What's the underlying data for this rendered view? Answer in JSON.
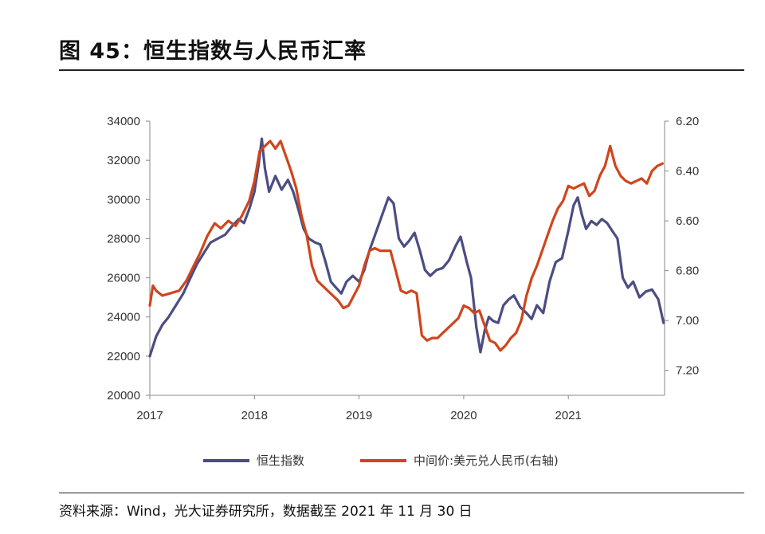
{
  "header": {
    "title": "图 45：恒生指数与人民币汇率"
  },
  "footer": {
    "source": "资料来源：Wind，光大证券研究所，数据截至 2021 年 11 月 30 日"
  },
  "colors": {
    "hsi": "#4b4d82",
    "fx": "#d0451c",
    "axis": "#888888"
  },
  "chart_data": {
    "type": "line",
    "x_ticks": [
      "2017",
      "2018",
      "2019",
      "2020",
      "2021"
    ],
    "y_left": {
      "ylim": [
        20000,
        34000
      ],
      "ticks": [
        "34000",
        "32000",
        "30000",
        "28000",
        "26000",
        "24000",
        "22000",
        "20000"
      ]
    },
    "y_right": {
      "ylim": [
        6.2,
        7.3
      ],
      "inverted": true,
      "ticks": [
        "6.20",
        "6.40",
        "6.60",
        "6.80",
        "7.00",
        "7.20"
      ]
    },
    "series": [
      {
        "name": "恒生指数",
        "axis": "left",
        "x": [
          2017.0,
          2017.06,
          2017.12,
          2017.18,
          2017.25,
          2017.32,
          2017.38,
          2017.45,
          2017.52,
          2017.58,
          2017.65,
          2017.72,
          2017.78,
          2017.85,
          2017.9,
          2017.95,
          2018.0,
          2018.04,
          2018.07,
          2018.1,
          2018.14,
          2018.2,
          2018.26,
          2018.32,
          2018.37,
          2018.42,
          2018.47,
          2018.52,
          2018.58,
          2018.63,
          2018.68,
          2018.73,
          2018.78,
          2018.83,
          2018.88,
          2018.94,
          2019.0,
          2019.05,
          2019.1,
          2019.16,
          2019.22,
          2019.28,
          2019.33,
          2019.38,
          2019.43,
          2019.48,
          2019.53,
          2019.58,
          2019.63,
          2019.68,
          2019.74,
          2019.8,
          2019.86,
          2019.92,
          2019.97,
          2020.03,
          2020.07,
          2020.12,
          2020.16,
          2020.2,
          2020.24,
          2020.28,
          2020.33,
          2020.38,
          2020.43,
          2020.48,
          2020.54,
          2020.6,
          2020.65,
          2020.7,
          2020.76,
          2020.82,
          2020.88,
          2020.94,
          2021.0,
          2021.05,
          2021.09,
          2021.13,
          2021.17,
          2021.22,
          2021.27,
          2021.32,
          2021.37,
          2021.42,
          2021.47,
          2021.52,
          2021.57,
          2021.62,
          2021.68,
          2021.74,
          2021.8,
          2021.86,
          2021.91
        ],
        "values": [
          22000,
          23000,
          23600,
          24000,
          24600,
          25200,
          25900,
          26700,
          27300,
          27800,
          28000,
          28200,
          28600,
          29000,
          28800,
          29500,
          30400,
          31800,
          33100,
          31600,
          30400,
          31200,
          30500,
          31000,
          30400,
          29500,
          28500,
          28000,
          27800,
          27700,
          26800,
          25800,
          25500,
          25200,
          25800,
          26100,
          25800,
          26400,
          27400,
          28300,
          29200,
          30100,
          29800,
          28000,
          27600,
          27900,
          28300,
          27400,
          26400,
          26100,
          26400,
          26500,
          26900,
          27600,
          28100,
          26800,
          26000,
          23500,
          22200,
          23300,
          24000,
          23800,
          23700,
          24600,
          24900,
          25100,
          24500,
          24200,
          23900,
          24600,
          24200,
          25800,
          26800,
          27000,
          28400,
          29700,
          30100,
          29200,
          28500,
          28900,
          28700,
          29000,
          28800,
          28400,
          28000,
          26000,
          25500,
          25800,
          25000,
          25300,
          25400,
          24900,
          23700
        ]
      },
      {
        "name": "中间价:美元兑人民币(右轴)",
        "axis": "right",
        "x": [
          2017.0,
          2017.03,
          2017.06,
          2017.12,
          2017.2,
          2017.28,
          2017.35,
          2017.42,
          2017.48,
          2017.55,
          2017.62,
          2017.68,
          2017.75,
          2017.82,
          2017.88,
          2017.95,
          2018.0,
          2018.05,
          2018.1,
          2018.15,
          2018.2,
          2018.25,
          2018.3,
          2018.35,
          2018.4,
          2018.45,
          2018.5,
          2018.55,
          2018.6,
          2018.65,
          2018.7,
          2018.75,
          2018.8,
          2018.85,
          2018.9,
          2018.95,
          2019.0,
          2019.05,
          2019.1,
          2019.15,
          2019.2,
          2019.25,
          2019.3,
          2019.35,
          2019.4,
          2019.45,
          2019.5,
          2019.55,
          2019.6,
          2019.65,
          2019.7,
          2019.75,
          2019.8,
          2019.85,
          2019.9,
          2019.95,
          2020.0,
          2020.05,
          2020.1,
          2020.15,
          2020.2,
          2020.25,
          2020.3,
          2020.35,
          2020.4,
          2020.45,
          2020.5,
          2020.55,
          2020.6,
          2020.65,
          2020.7,
          2020.75,
          2020.8,
          2020.85,
          2020.9,
          2020.95,
          2021.0,
          2021.05,
          2021.1,
          2021.15,
          2021.2,
          2021.25,
          2021.3,
          2021.35,
          2021.4,
          2021.45,
          2021.5,
          2021.55,
          2021.6,
          2021.65,
          2021.7,
          2021.75,
          2021.8,
          2021.85,
          2021.9
        ],
        "values": [
          6.94,
          6.86,
          6.88,
          6.9,
          6.89,
          6.88,
          6.84,
          6.78,
          6.73,
          6.66,
          6.61,
          6.63,
          6.6,
          6.62,
          6.58,
          6.52,
          6.44,
          6.32,
          6.3,
          6.28,
          6.31,
          6.28,
          6.34,
          6.4,
          6.47,
          6.58,
          6.66,
          6.78,
          6.84,
          6.86,
          6.88,
          6.9,
          6.92,
          6.95,
          6.94,
          6.9,
          6.86,
          6.78,
          6.72,
          6.71,
          6.72,
          6.72,
          6.72,
          6.8,
          6.88,
          6.89,
          6.88,
          6.89,
          7.06,
          7.08,
          7.07,
          7.07,
          7.05,
          7.03,
          7.01,
          6.99,
          6.94,
          6.95,
          6.97,
          6.96,
          7.02,
          7.08,
          7.09,
          7.12,
          7.1,
          7.07,
          7.05,
          7.0,
          6.9,
          6.83,
          6.78,
          6.72,
          6.66,
          6.6,
          6.55,
          6.52,
          6.46,
          6.47,
          6.46,
          6.45,
          6.5,
          6.48,
          6.42,
          6.38,
          6.3,
          6.38,
          6.42,
          6.44,
          6.45,
          6.44,
          6.43,
          6.45,
          6.4,
          6.38,
          6.37
        ]
      }
    ]
  }
}
